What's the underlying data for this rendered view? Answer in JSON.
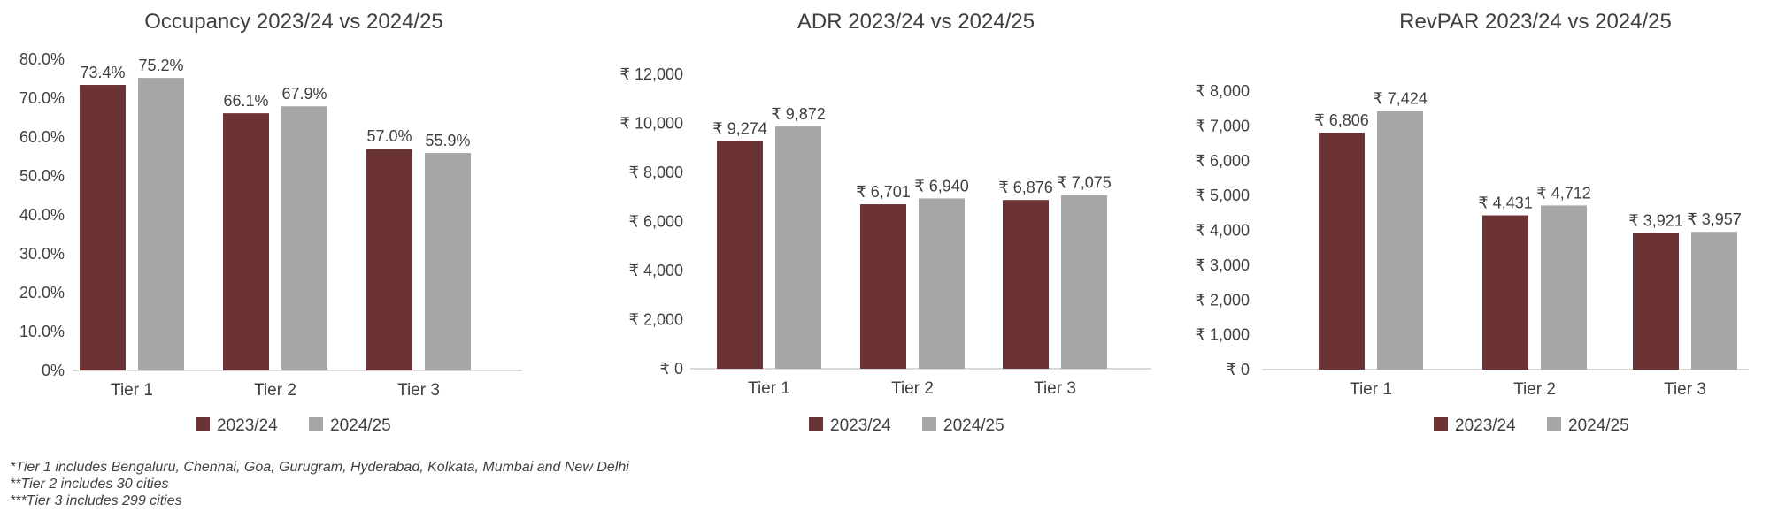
{
  "colors": {
    "series_2023": "#6b3333",
    "series_2024": "#a6a6a8",
    "axis": "#d9d9d9"
  },
  "chart_data": [
    {
      "type": "bar",
      "title": "Occupancy 2023/24 vs 2024/25",
      "categories": [
        "Tier 1",
        "Tier 2",
        "Tier 3"
      ],
      "series": [
        {
          "name": "2023/24",
          "values": [
            73.4,
            66.1,
            57.0
          ]
        },
        {
          "name": "2024/25",
          "values": [
            75.2,
            67.9,
            55.9
          ]
        }
      ],
      "data_labels": [
        [
          "73.4%",
          "66.1%",
          "57.0%"
        ],
        [
          "75.2%",
          "67.9%",
          "55.9%"
        ]
      ],
      "ylim": [
        0,
        80
      ],
      "yticks": [
        0,
        10,
        20,
        30,
        40,
        50,
        60,
        70,
        80
      ],
      "ytick_labels": [
        "0%",
        "10.0%",
        "20.0%",
        "30.0%",
        "40.0%",
        "50.0%",
        "60.0%",
        "70.0%",
        "80.0%"
      ],
      "grid": false,
      "legend": "bottom"
    },
    {
      "type": "bar",
      "title": "ADR 2023/24 vs 2024/25",
      "categories": [
        "Tier 1",
        "Tier 2",
        "Tier 3"
      ],
      "series": [
        {
          "name": "2023/24",
          "values": [
            9274,
            6701,
            6876
          ]
        },
        {
          "name": "2024/25",
          "values": [
            9872,
            6940,
            7075
          ]
        }
      ],
      "data_labels": [
        [
          "₹ 9,274",
          "₹ 6,701",
          "₹ 6,876"
        ],
        [
          "₹ 9,872",
          "₹ 6,940",
          "₹ 7,075"
        ]
      ],
      "ylim": [
        0,
        12000
      ],
      "yticks": [
        0,
        2000,
        4000,
        6000,
        8000,
        10000,
        12000
      ],
      "ytick_labels": [
        "₹ 0",
        "₹ 2,000",
        "₹ 4,000",
        "₹ 6,000",
        "₹ 8,000",
        "₹ 10,000",
        "₹ 12,000"
      ],
      "grid": false,
      "legend": "bottom"
    },
    {
      "type": "bar",
      "title": "RevPAR 2023/24 vs 2024/25",
      "categories": [
        "Tier 1",
        "Tier 2",
        "Tier 3"
      ],
      "series": [
        {
          "name": "2023/24",
          "values": [
            6806,
            4431,
            3921
          ]
        },
        {
          "name": "2024/25",
          "values": [
            7424,
            4712,
            3957
          ]
        }
      ],
      "data_labels": [
        [
          "₹ 6,806",
          "₹ 4,431",
          "₹ 3,921"
        ],
        [
          "₹ 7,424",
          "₹ 4,712",
          "₹ 3,957"
        ]
      ],
      "ylim": [
        0,
        8000
      ],
      "yticks": [
        0,
        1000,
        2000,
        3000,
        4000,
        5000,
        6000,
        7000,
        8000
      ],
      "ytick_labels": [
        "₹ 0",
        "₹ 1,000",
        "₹ 2,000",
        "₹ 3,000",
        "₹ 4,000",
        "₹ 5,000",
        "₹ 6,000",
        "₹ 7,000",
        "₹ 8,000"
      ],
      "grid": false,
      "legend": "bottom"
    }
  ],
  "footnotes": [
    "*Tier 1 includes Bengaluru, Chennai, Goa, Gurugram, Hyderabad, Kolkata, Mumbai and New Delhi",
    "**Tier 2 includes 30 cities",
    "***Tier 3 includes 299 cities"
  ]
}
